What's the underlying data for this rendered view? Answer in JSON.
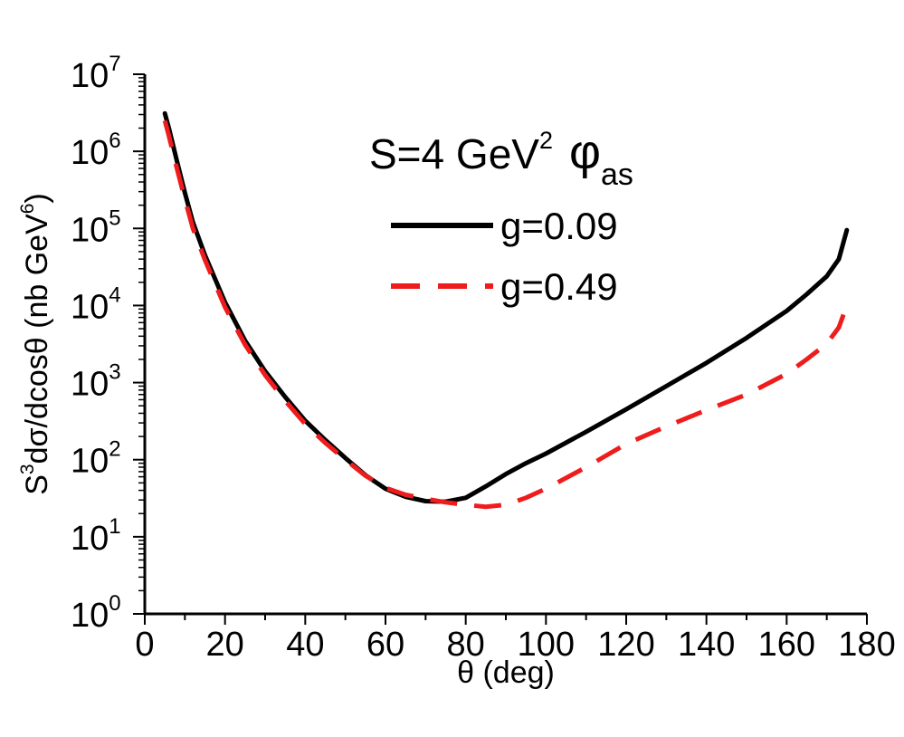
{
  "chart_data": {
    "type": "line",
    "title": "",
    "annotation": {
      "prefix": "S=4 GeV",
      "exponent": "2",
      "symbol": "φ",
      "subscript": "as"
    },
    "xlabel": "θ (deg)",
    "ylabel": {
      "s": "S",
      "s_exp": "3",
      "body": "dσ/dcosθ (nb GeV",
      "unit_exp": "6",
      "close": ")"
    },
    "xlim": [
      0,
      180
    ],
    "x_ticks": [
      "0",
      "20",
      "40",
      "60",
      "80",
      "100",
      "120",
      "140",
      "160",
      "180"
    ],
    "ylim_log10": [
      0,
      7
    ],
    "y_scale": "log",
    "y_tick_base": "10",
    "y_tick_exponents": [
      "0",
      "1",
      "2",
      "3",
      "4",
      "5",
      "6",
      "7"
    ],
    "grid": false,
    "legend_placement": "top-right",
    "series": [
      {
        "name": "g=0.09",
        "color": "#000000",
        "style": "solid",
        "x": [
          5,
          6,
          8,
          10,
          12,
          15,
          20,
          25,
          30,
          35,
          40,
          45,
          50,
          55,
          60,
          65,
          70,
          75,
          80,
          85,
          90,
          95,
          100,
          110,
          120,
          130,
          140,
          150,
          160,
          165,
          170,
          173,
          175
        ],
        "y": [
          3100000.0,
          2000000.0,
          750000.0,
          290000.0,
          120000.0,
          45000.0,
          11000.0,
          3500.0,
          1400.0,
          650.0,
          320.0,
          180.0,
          105.0,
          63,
          42,
          33,
          29,
          28.5,
          32,
          45,
          65,
          90,
          120,
          230,
          450,
          900,
          1800,
          3800,
          8500,
          14000.0,
          24000.0,
          40000.0,
          95000.0
        ]
      },
      {
        "name": "g=0.49",
        "color": "#ee1c1c",
        "style": "dashed",
        "x": [
          5,
          6,
          8,
          10,
          12,
          15,
          20,
          25,
          30,
          35,
          40,
          45,
          50,
          55,
          60,
          65,
          70,
          75,
          80,
          85,
          90,
          95,
          100,
          110,
          120,
          130,
          140,
          150,
          160,
          165,
          170,
          173,
          175
        ],
        "y": [
          2500000.0,
          1600000.0,
          600000.0,
          240000.0,
          100000.0,
          39000.0,
          9500.0,
          3100.0,
          1250.0,
          580.0,
          290.0,
          165.0,
          100.0,
          62,
          43,
          35,
          31,
          28,
          26,
          24.5,
          26,
          32,
          42,
          80,
          160,
          270,
          440,
          700,
          1300,
          2000,
          3200,
          5200,
          10000.0
        ]
      }
    ]
  }
}
